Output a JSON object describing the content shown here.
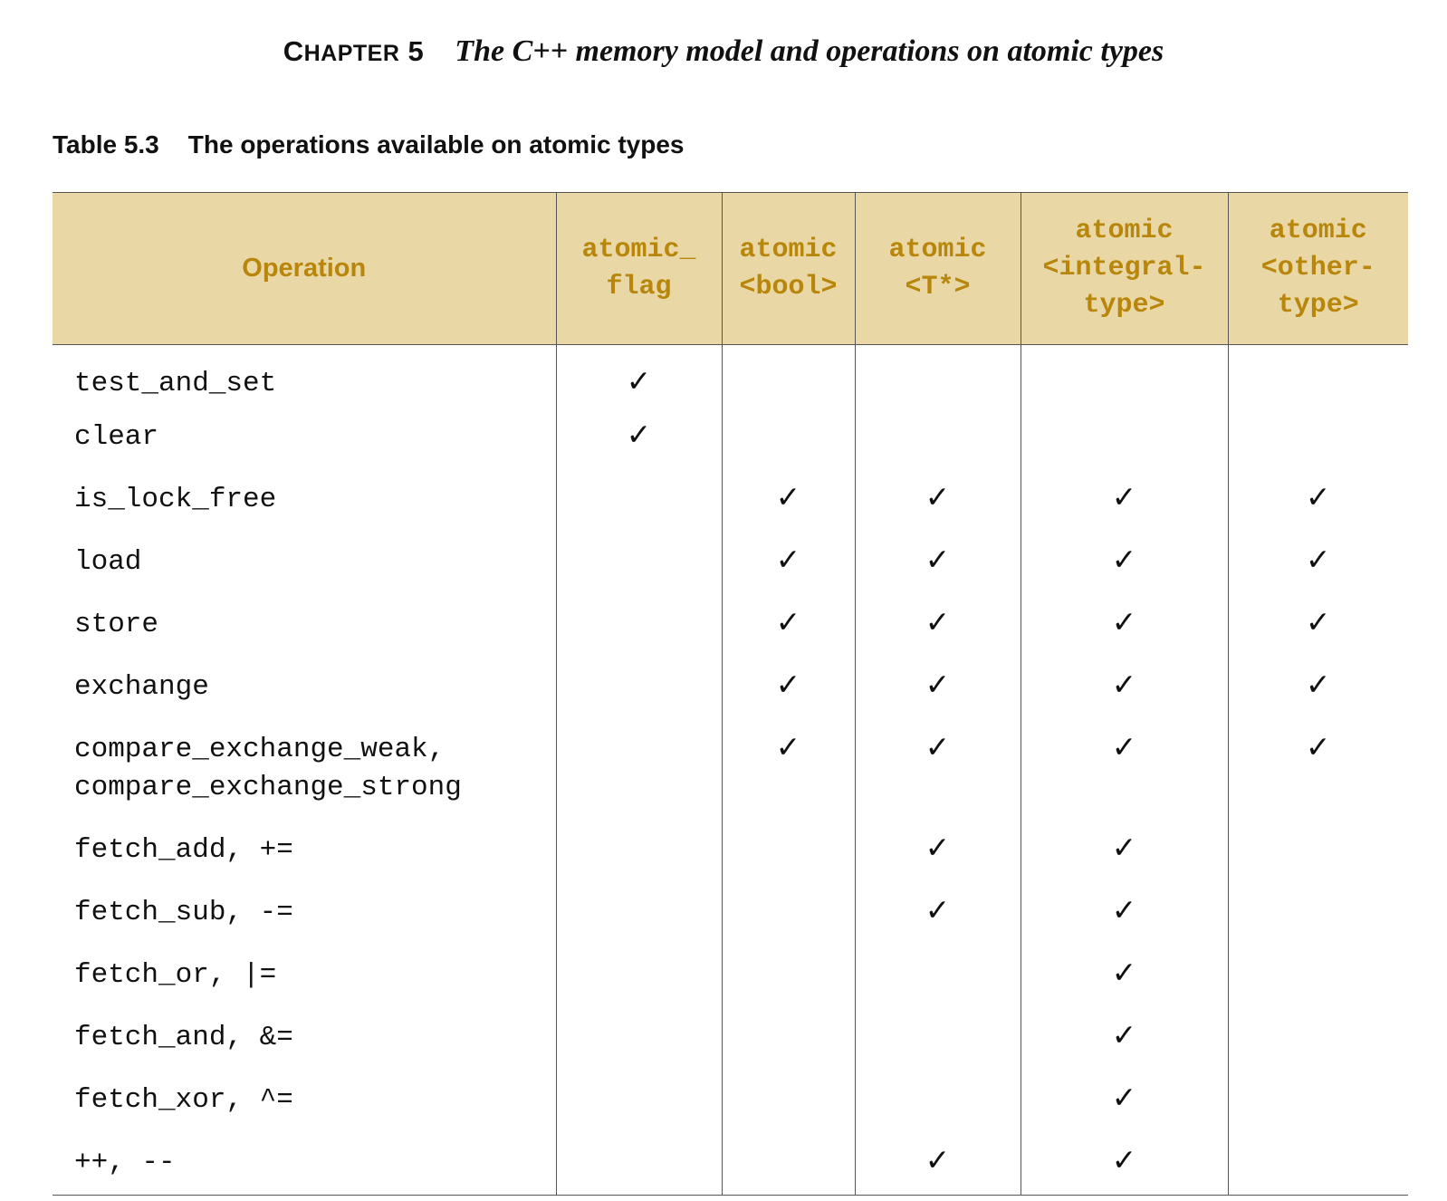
{
  "header": {
    "chapter_first": "C",
    "chapter_rest": "HAPTER",
    "chapter_number": "5",
    "chapter_title": "The C++ memory model and operations on atomic types"
  },
  "table_title": {
    "number": "Table 5.3",
    "caption": "The operations available on atomic types"
  },
  "check_mark": "✓",
  "columns": [
    {
      "lines": [
        "Operation"
      ]
    },
    {
      "lines": [
        "atomic_",
        "flag"
      ]
    },
    {
      "lines": [
        "atomic",
        "<bool>"
      ]
    },
    {
      "lines": [
        "atomic",
        "<T*>"
      ]
    },
    {
      "lines": [
        "atomic",
        "<integral-",
        "type>"
      ]
    },
    {
      "lines": [
        "atomic",
        "<other-",
        "type>"
      ]
    }
  ],
  "rows": [
    {
      "operation": [
        "test_and_set"
      ],
      "supported": [
        true,
        false,
        false,
        false,
        false
      ]
    },
    {
      "operation": [
        "clear"
      ],
      "supported": [
        true,
        false,
        false,
        false,
        false
      ]
    },
    {
      "operation": [
        "is_lock_free"
      ],
      "supported": [
        false,
        true,
        true,
        true,
        true
      ]
    },
    {
      "operation": [
        "load"
      ],
      "supported": [
        false,
        true,
        true,
        true,
        true
      ]
    },
    {
      "operation": [
        "store"
      ],
      "supported": [
        false,
        true,
        true,
        true,
        true
      ]
    },
    {
      "operation": [
        "exchange"
      ],
      "supported": [
        false,
        true,
        true,
        true,
        true
      ]
    },
    {
      "operation": [
        "compare_exchange_weak,",
        "compare_exchange_strong"
      ],
      "supported": [
        false,
        true,
        true,
        true,
        true
      ]
    },
    {
      "operation": [
        "fetch_add, +="
      ],
      "supported": [
        false,
        false,
        true,
        true,
        false
      ]
    },
    {
      "operation": [
        "fetch_sub, -="
      ],
      "supported": [
        false,
        false,
        true,
        true,
        false
      ]
    },
    {
      "operation": [
        "fetch_or, |="
      ],
      "supported": [
        false,
        false,
        false,
        true,
        false
      ]
    },
    {
      "operation": [
        "fetch_and, &="
      ],
      "supported": [
        false,
        false,
        false,
        true,
        false
      ]
    },
    {
      "operation": [
        "fetch_xor, ^="
      ],
      "supported": [
        false,
        false,
        false,
        true,
        false
      ]
    },
    {
      "operation": [
        "++, --"
      ],
      "supported": [
        false,
        false,
        true,
        true,
        false
      ]
    }
  ]
}
